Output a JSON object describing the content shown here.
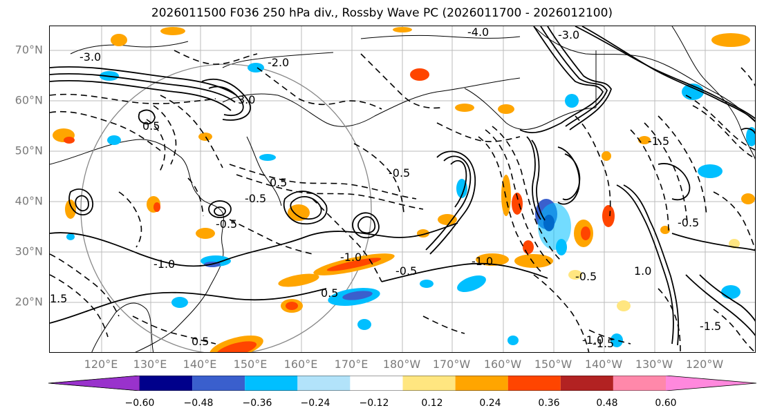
{
  "title": "2026011500 F036 250 hPa div., Rossby Wave PC (2026011700 - 2026012100)",
  "map": {
    "lat_labels": [
      "70°N",
      "60°N",
      "50°N",
      "40°N",
      "30°N",
      "20°N"
    ],
    "lon_labels": [
      "120°E",
      "130°E",
      "140°E",
      "150°E",
      "160°E",
      "170°E",
      "180°W",
      "170°W",
      "160°W",
      "150°W",
      "140°W",
      "130°W",
      "120°W"
    ],
    "contour_labels": [
      "-4.0",
      "-3.0",
      "-3.0",
      "-2.0",
      "-1.5",
      "-1.0",
      "-0.5",
      "-0.5",
      "-0.5",
      "0.5",
      "0.5",
      "0.5",
      "0.5",
      "-1.0",
      "-1.0",
      "-1.5",
      "1.5",
      "1.0",
      "3.0",
      "-0.5",
      "-0.5",
      "-0.5",
      "-1.0",
      "-1.5"
    ],
    "colors": {
      "pos_weak": "#FFE680",
      "pos_mid": "#FFA500",
      "pos_strong": "#FF4500",
      "neg_weak": "#00BFFF",
      "neg_mid": "#3A5FCD",
      "neg_strong": "#00008B"
    }
  },
  "colorbar": {
    "tick_labels": [
      "−0.60",
      "−0.48",
      "−0.36",
      "−0.24",
      "−0.12",
      "0.12",
      "0.24",
      "0.36",
      "0.48",
      "0.60"
    ],
    "segment_colors": [
      "#9932CC",
      "#00008B",
      "#3A5FCD",
      "#00BFFF",
      "#B2E3FA",
      "#FFFFFF",
      "#FFE680",
      "#FFA500",
      "#FF4500",
      "#B22222",
      "#FF88AA",
      "#FF88DD"
    ]
  }
}
